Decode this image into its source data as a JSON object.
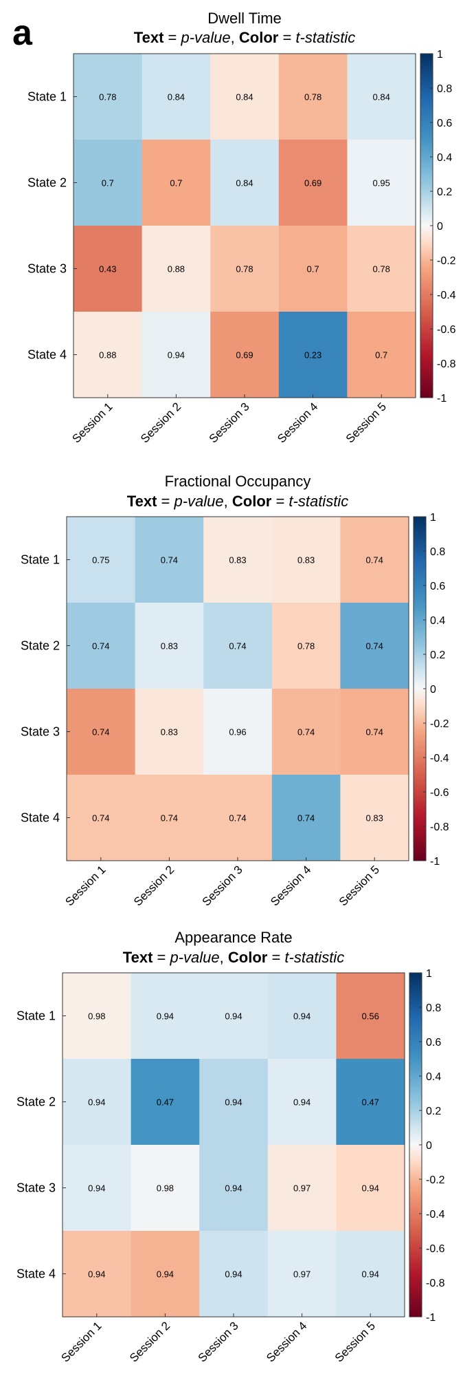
{
  "panel_label": "a",
  "chart_data": [
    {
      "type": "heatmap",
      "title": "Dwell Time",
      "subtitle": {
        "text_word": "Text",
        "text_value": "p-value",
        "color_word": "Color",
        "color_value": "t-statistic"
      },
      "categories": [
        "Session 1",
        "Session 2",
        "Session 3",
        "Session 4",
        "Session 5"
      ],
      "rows": [
        "State 1",
        "State 2",
        "State 3",
        "State 4"
      ],
      "p_values": [
        [
          "0.78",
          "0.84",
          "0.84",
          "0.78",
          "0.84"
        ],
        [
          "0.7",
          "0.7",
          "0.84",
          "0.69",
          "0.95"
        ],
        [
          "0.43",
          "0.88",
          "0.78",
          "0.7",
          "0.78"
        ],
        [
          "0.88",
          "0.94",
          "0.69",
          "0.23",
          "0.7"
        ]
      ],
      "t_statistic": [
        [
          0.18,
          0.1,
          -0.06,
          -0.2,
          0.08
        ],
        [
          0.24,
          -0.24,
          0.1,
          -0.34,
          0.03
        ],
        [
          -0.4,
          -0.05,
          -0.17,
          -0.22,
          -0.14
        ],
        [
          -0.05,
          0.04,
          -0.3,
          0.58,
          -0.24
        ]
      ],
      "colorbar_ticks": [
        "1",
        "0.8",
        "0.6",
        "0.4",
        "0.2",
        "0",
        "-0.2",
        "-0.4",
        "-0.6",
        "-0.8",
        "-1"
      ],
      "clim": [
        -1,
        1
      ]
    },
    {
      "type": "heatmap",
      "title": "Fractional Occupancy",
      "subtitle": {
        "text_word": "Text",
        "text_value": "p-value",
        "color_word": "Color",
        "color_value": "t-statistic"
      },
      "categories": [
        "Session 1",
        "Session 2",
        "Session 3",
        "Session 4",
        "Session 5"
      ],
      "rows": [
        "State 1",
        "State 2",
        "State 3",
        "State 4"
      ],
      "p_values": [
        [
          "0.75",
          "0.74",
          "0.83",
          "0.83",
          "0.74"
        ],
        [
          "0.74",
          "0.83",
          "0.74",
          "0.78",
          "0.74"
        ],
        [
          "0.74",
          "0.83",
          "0.96",
          "0.74",
          "0.74"
        ],
        [
          "0.74",
          "0.74",
          "0.74",
          "0.74",
          "0.83"
        ]
      ],
      "t_statistic": [
        [
          0.12,
          0.22,
          -0.05,
          -0.06,
          -0.18
        ],
        [
          0.22,
          0.06,
          0.15,
          -0.12,
          0.38
        ],
        [
          -0.3,
          -0.06,
          0.02,
          -0.2,
          -0.22
        ],
        [
          -0.16,
          -0.16,
          -0.16,
          0.36,
          -0.08
        ]
      ],
      "colorbar_ticks": [
        "1",
        "0.8",
        "0.6",
        "0.4",
        "0.2",
        "0",
        "-0.2",
        "-0.4",
        "-0.6",
        "-0.8",
        "-1"
      ],
      "clim": [
        -1,
        1
      ]
    },
    {
      "type": "heatmap",
      "title": "Appearance Rate",
      "subtitle": {
        "text_word": "Text",
        "text_value": "p-value",
        "color_word": "Color",
        "color_value": "t-statistic"
      },
      "categories": [
        "Session 1",
        "Session 2",
        "Session 3",
        "Session 4",
        "Session 5"
      ],
      "rows": [
        "State 1",
        "State 2",
        "State 3",
        "State 4"
      ],
      "p_values": [
        [
          "0.98",
          "0.94",
          "0.94",
          "0.94",
          "0.56"
        ],
        [
          "0.94",
          "0.47",
          "0.94",
          "0.94",
          "0.47"
        ],
        [
          "0.94",
          "0.98",
          "0.94",
          "0.97",
          "0.94"
        ],
        [
          "0.94",
          "0.94",
          "0.94",
          "0.97",
          "0.94"
        ]
      ],
      "t_statistic": [
        [
          -0.03,
          0.08,
          0.08,
          0.1,
          -0.36
        ],
        [
          0.09,
          0.5,
          0.16,
          0.06,
          0.52
        ],
        [
          0.06,
          0.01,
          0.16,
          -0.05,
          -0.1
        ],
        [
          -0.17,
          -0.21,
          0.11,
          0.06,
          0.09
        ]
      ],
      "colorbar_ticks": [
        "1",
        "0.8",
        "0.6",
        "0.4",
        "0.2",
        "0",
        "-0.2",
        "-0.4",
        "-0.6",
        "-0.8",
        "-1"
      ],
      "clim": [
        -1,
        1
      ]
    }
  ]
}
